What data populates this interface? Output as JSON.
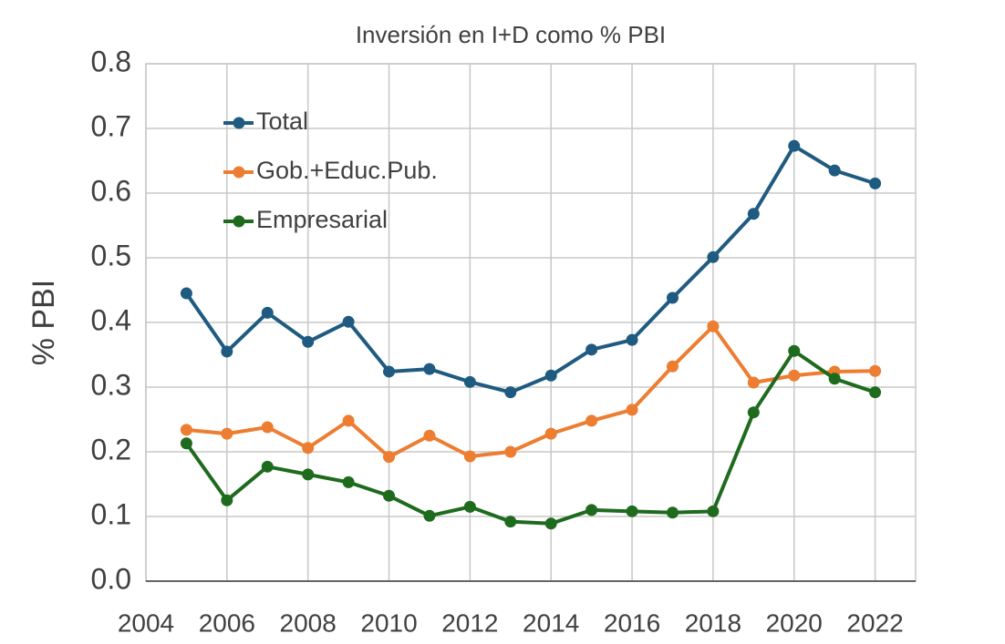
{
  "chart_data": {
    "type": "line",
    "title": "Inversión en I+D como % PBI",
    "y_label": "% PBI",
    "x": [
      2005,
      2006,
      2007,
      2008,
      2009,
      2010,
      2011,
      2012,
      2013,
      2014,
      2015,
      2016,
      2017,
      2018,
      2019,
      2020,
      2021,
      2022
    ],
    "series": [
      {
        "name": "Total",
        "color": "#1f5b80",
        "values": [
          0.445,
          0.355,
          0.415,
          0.37,
          0.401,
          0.324,
          0.328,
          0.308,
          0.292,
          0.318,
          0.358,
          0.373,
          0.438,
          0.501,
          0.568,
          0.673,
          0.635,
          0.615
        ]
      },
      {
        "name": "Gob.+Educ.Pub.",
        "color": "#ed7d31",
        "values": [
          0.234,
          0.228,
          0.238,
          0.206,
          0.248,
          0.192,
          0.225,
          0.193,
          0.2,
          0.228,
          0.248,
          0.265,
          0.332,
          0.394,
          0.307,
          0.318,
          0.324,
          0.325
        ]
      },
      {
        "name": "Empresarial",
        "color": "#1e6b1e",
        "values": [
          0.213,
          0.125,
          0.177,
          0.165,
          0.153,
          0.132,
          0.101,
          0.115,
          0.092,
          0.089,
          0.11,
          0.108,
          0.106,
          0.108,
          0.261,
          0.356,
          0.313,
          0.292
        ]
      }
    ],
    "xlim": [
      2004,
      2023
    ],
    "xticks": [
      2004,
      2006,
      2008,
      2010,
      2012,
      2014,
      2016,
      2018,
      2020,
      2022
    ],
    "ylim": [
      0,
      0.8
    ],
    "yticks": [
      {
        "value": 0,
        "label": "0.0"
      },
      0.1,
      0.2,
      0.3,
      0.4,
      0.5,
      0.6,
      0.7,
      0.8
    ],
    "grid": true,
    "legend": "upper left"
  }
}
